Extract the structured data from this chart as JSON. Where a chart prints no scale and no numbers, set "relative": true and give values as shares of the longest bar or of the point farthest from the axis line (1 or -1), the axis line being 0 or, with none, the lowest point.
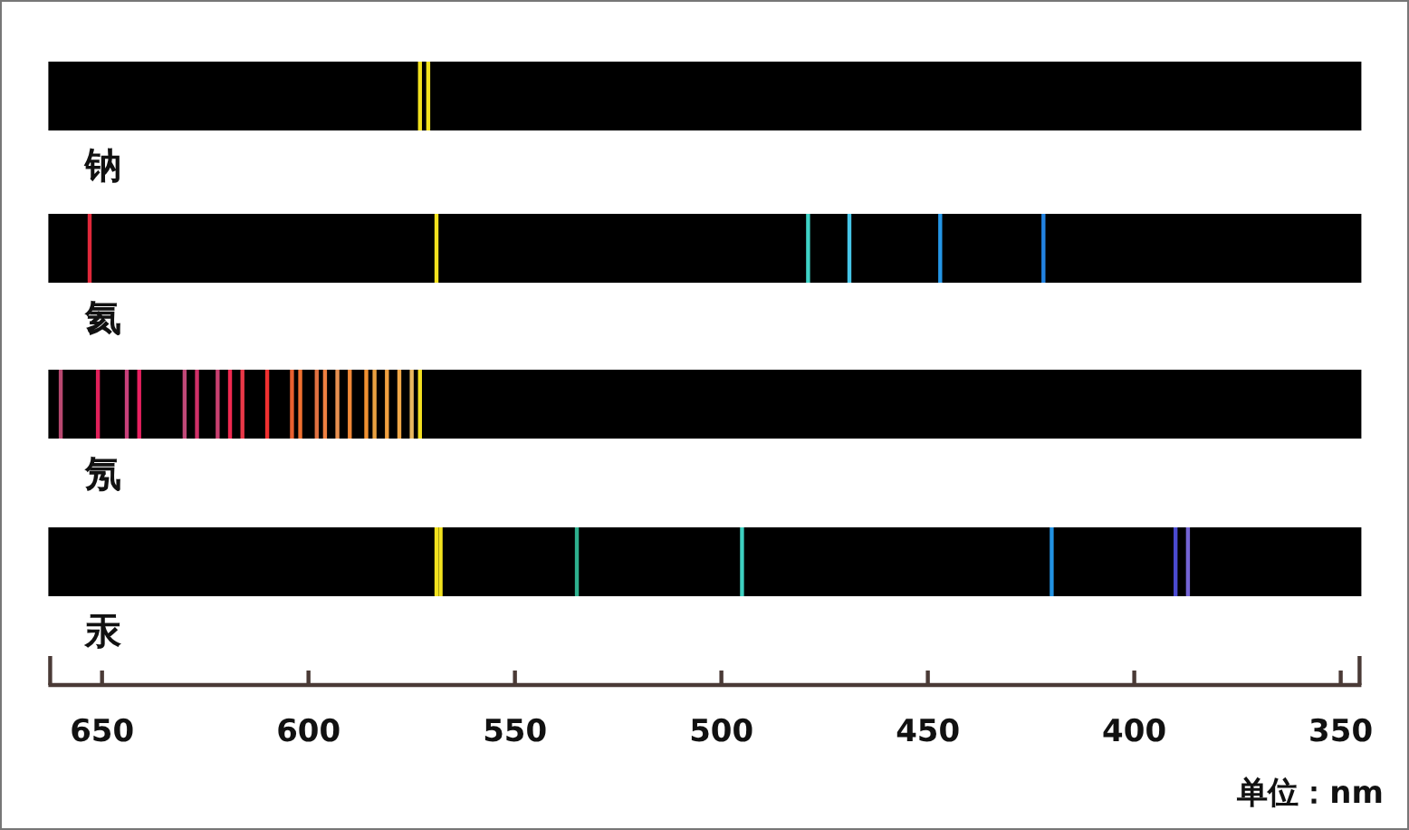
{
  "chart_data": [
    {
      "type": "bar",
      "title": "钠",
      "relative": true,
      "xlim": [
        663,
        345
      ],
      "tick_labels": false,
      "x": [
        573,
        571
      ],
      "values": [
        1,
        1
      ],
      "colors": [
        "#f2e21e",
        "#f2e21e"
      ]
    },
    {
      "type": "bar",
      "title": "氦",
      "relative": true,
      "xlim": [
        663,
        345
      ],
      "tick_labels": false,
      "x": [
        653,
        569,
        479,
        469,
        447,
        422
      ],
      "values": [
        1,
        1,
        1,
        1,
        1,
        1
      ],
      "colors": [
        "#e0283a",
        "#f2e21e",
        "#3ed2c6",
        "#46c4e6",
        "#2496e6",
        "#2282e0"
      ]
    },
    {
      "type": "bar",
      "title": "氖",
      "relative": true,
      "xlim": [
        663,
        345
      ],
      "tick_labels": false,
      "x": [
        660,
        651,
        644,
        641,
        630,
        627,
        622,
        619,
        616,
        610,
        604,
        602,
        598,
        596,
        593,
        590,
        586,
        584,
        581,
        578,
        575,
        573
      ],
      "values": [
        1,
        1,
        1,
        1,
        1,
        1,
        1,
        1,
        1,
        1,
        1,
        1,
        1,
        1,
        1,
        1,
        1,
        1,
        1,
        1,
        1,
        1
      ],
      "colors": [
        "#b84870",
        "#e0205a",
        "#c8407a",
        "#e82060",
        "#c04878",
        "#d03068",
        "#c84070",
        "#f02850",
        "#e83848",
        "#f03030",
        "#e86030",
        "#f07030",
        "#e07040",
        "#f08040",
        "#e89050",
        "#f08838",
        "#f09030",
        "#e8a040",
        "#f0a040",
        "#f0a848",
        "#e8b860",
        "#f4e020"
      ]
    },
    {
      "type": "bar",
      "title": "汞",
      "relative": true,
      "xlim": [
        663,
        345
      ],
      "xlabel": "单位：nm",
      "xticks": [
        650,
        600,
        550,
        500,
        450,
        400,
        350
      ],
      "x": [
        569,
        568,
        535,
        495,
        420,
        390,
        387
      ],
      "values": [
        1,
        1,
        1,
        1,
        1,
        1,
        1
      ],
      "colors": [
        "#f2e21e",
        "#f2e21e",
        "#2eb08e",
        "#3ed0c0",
        "#2292e2",
        "#4a4ad0",
        "#7464d4"
      ]
    }
  ]
}
